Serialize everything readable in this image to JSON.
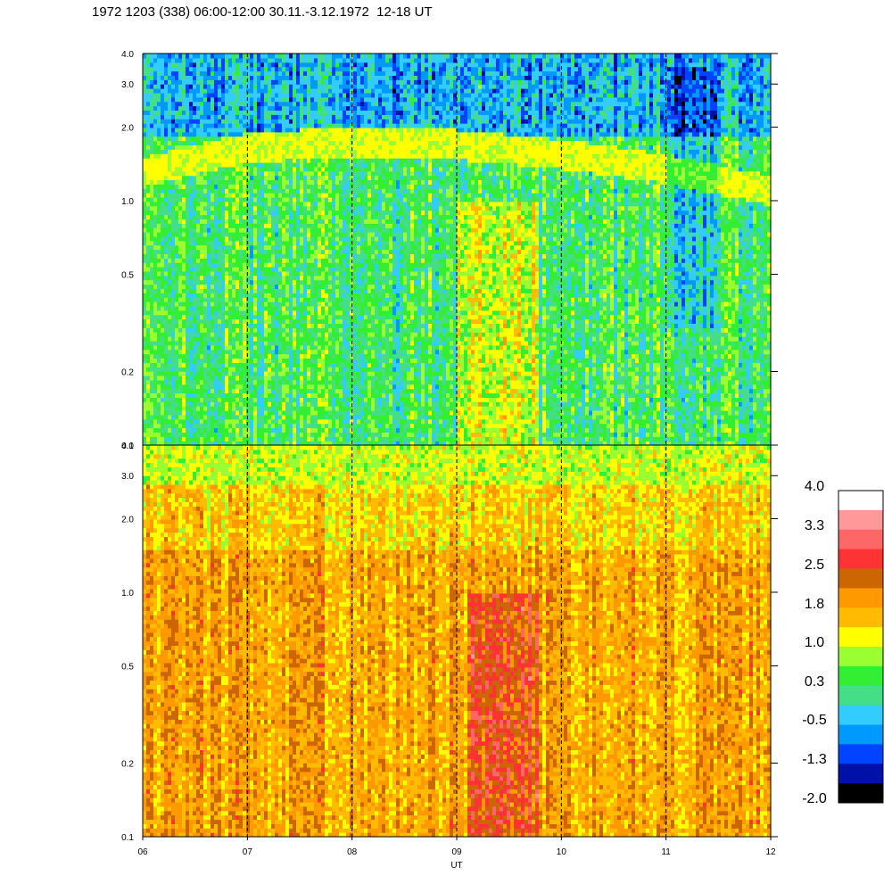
{
  "title": "1972 1203 (338) 06:00-12:00 30.11.-3.12.1972  12-18 UT",
  "chart_data": [
    {
      "type": "heatmap",
      "panel": "upper",
      "x_ticks": [
        "06",
        "07",
        "08",
        "09",
        "10",
        "11",
        "12"
      ],
      "x_range": [
        6,
        12
      ],
      "y_ticks": [
        "0.1",
        "0.2",
        "0.5",
        "1.0",
        "2.0",
        "3.0",
        "4.0"
      ],
      "y_range": [
        0.1,
        4.0
      ],
      "y_scale": "log",
      "band_center": [
        1.3,
        1.65,
        1.75,
        1.7,
        1.55,
        1.35,
        1.1
      ],
      "description_levels": {
        "background": 0.3,
        "band": 1.0,
        "bright_region_x": [
          9.0,
          9.8
        ]
      }
    },
    {
      "type": "heatmap",
      "panel": "lower",
      "x_ticks": [
        "06",
        "07",
        "08",
        "09",
        "10",
        "11",
        "12"
      ],
      "x_range": [
        6,
        12
      ],
      "y_ticks": [
        "0.1",
        "0.2",
        "0.5",
        "1.0",
        "2.0",
        "3.0",
        "4.0"
      ],
      "y_range": [
        0.1,
        4.0
      ],
      "y_scale": "log",
      "xlabel": "UT",
      "description_levels": {
        "background": 1.8,
        "top": 1.0,
        "strong_region_x": [
          9.1,
          9.8
        ]
      }
    }
  ],
  "colorbar": {
    "labels": [
      "4.0",
      "3.3",
      "2.5",
      "1.8",
      "1.0",
      "0.3",
      "-0.5",
      "-1.3",
      "-2.0"
    ],
    "colors": [
      "#ffffff",
      "#ff9999",
      "#ff6666",
      "#ff3333",
      "#cc6600",
      "#ff9900",
      "#ffbb00",
      "#ffff00",
      "#99ff33",
      "#33ee33",
      "#44dd88",
      "#33ccff",
      "#0099ff",
      "#0044ff",
      "#0011aa",
      "#000000"
    ]
  }
}
